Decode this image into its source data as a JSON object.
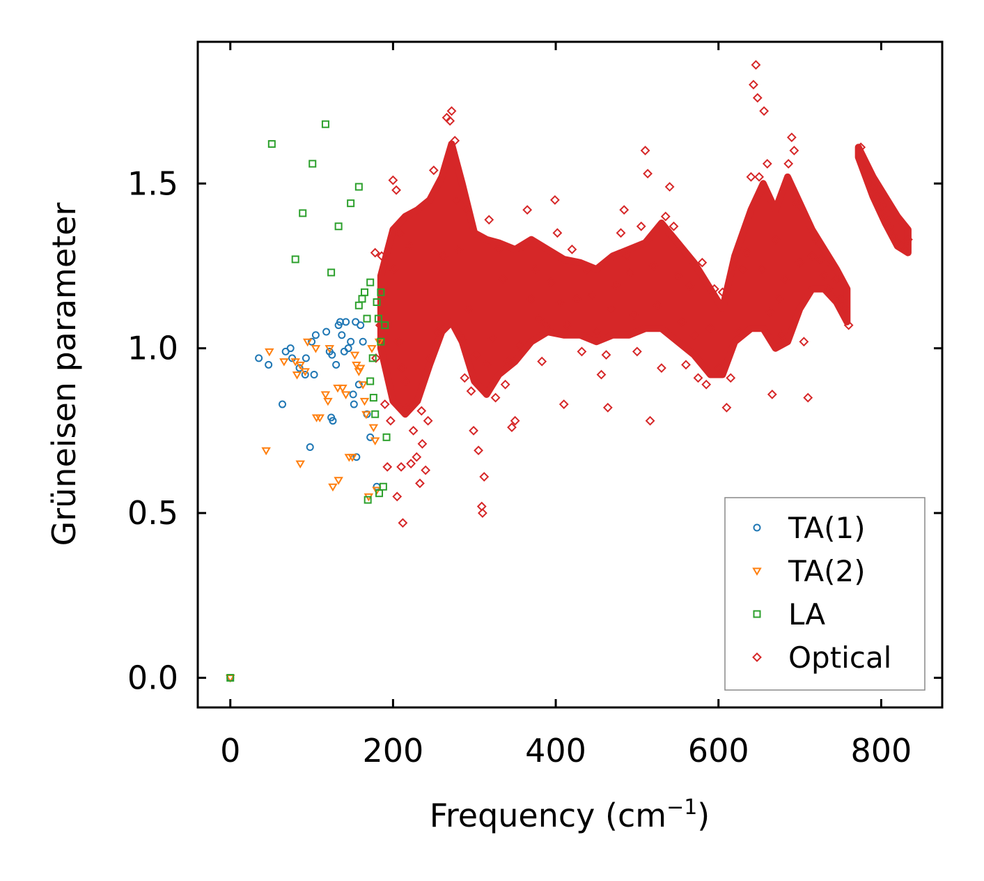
{
  "chart_data": {
    "type": "scatter",
    "title": "",
    "xlabel": "Frequency (cm",
    "xlabel_sup": "−1",
    "xlabel_end": ")",
    "ylabel": "Grüneisen parameter",
    "xlim": [
      -40,
      875
    ],
    "ylim": [
      -0.09,
      1.93
    ],
    "xticks": [
      0,
      200,
      400,
      600,
      800
    ],
    "xtick_labels": [
      "0",
      "200",
      "400",
      "600",
      "800"
    ],
    "yticks": [
      0.0,
      0.5,
      1.0,
      1.5
    ],
    "ytick_labels": [
      "0.0",
      "0.5",
      "1.0",
      "1.5"
    ],
    "legend_position": "lower-right",
    "grid": false,
    "series": [
      {
        "name": "TA(1)",
        "marker": "circle",
        "color": "#1f77b4",
        "points": [
          [
            0,
            0.0
          ],
          [
            35,
            0.97
          ],
          [
            47,
            0.95
          ],
          [
            64,
            0.83
          ],
          [
            68,
            0.99
          ],
          [
            74,
            1.0
          ],
          [
            76,
            0.97
          ],
          [
            85,
            0.94
          ],
          [
            92,
            0.92
          ],
          [
            93,
            0.97
          ],
          [
            100,
            1.02
          ],
          [
            103,
            0.92
          ],
          [
            105,
            1.04
          ],
          [
            98,
            0.7
          ],
          [
            118,
            1.05
          ],
          [
            122,
            0.99
          ],
          [
            125,
            0.98
          ],
          [
            124,
            0.79
          ],
          [
            126,
            0.78
          ],
          [
            130,
            0.95
          ],
          [
            133,
            1.07
          ],
          [
            135,
            1.08
          ],
          [
            137,
            1.04
          ],
          [
            140,
            0.99
          ],
          [
            142,
            1.08
          ],
          [
            145,
            1.0
          ],
          [
            148,
            1.02
          ],
          [
            151,
            0.86
          ],
          [
            152,
            0.83
          ],
          [
            154,
            1.08
          ],
          [
            155,
            0.67
          ],
          [
            158,
            0.89
          ],
          [
            160,
            1.07
          ],
          [
            163,
            1.02
          ],
          [
            168,
            0.8
          ],
          [
            172,
            0.73
          ],
          [
            180,
            0.58
          ]
        ]
      },
      {
        "name": "TA(2)",
        "marker": "triangle",
        "color": "#ff7f0e",
        "points": [
          [
            0,
            0.0
          ],
          [
            44,
            0.69
          ],
          [
            48,
            0.99
          ],
          [
            66,
            0.96
          ],
          [
            80,
            0.96
          ],
          [
            82,
            0.92
          ],
          [
            86,
            0.95
          ],
          [
            86,
            0.65
          ],
          [
            92,
            0.93
          ],
          [
            95,
            1.02
          ],
          [
            105,
            1.0
          ],
          [
            106,
            0.79
          ],
          [
            110,
            0.79
          ],
          [
            117,
            0.86
          ],
          [
            120,
            0.84
          ],
          [
            122,
            1.0
          ],
          [
            126,
            0.58
          ],
          [
            132,
            0.88
          ],
          [
            133,
            0.6
          ],
          [
            138,
            0.88
          ],
          [
            142,
            0.86
          ],
          [
            146,
            0.67
          ],
          [
            150,
            0.67
          ],
          [
            153,
            0.98
          ],
          [
            155,
            0.95
          ],
          [
            158,
            0.93
          ],
          [
            160,
            0.94
          ],
          [
            163,
            0.89
          ],
          [
            165,
            0.84
          ],
          [
            167,
            0.8
          ],
          [
            170,
            0.55
          ],
          [
            174,
            1.0
          ],
          [
            176,
            0.76
          ],
          [
            178,
            0.72
          ],
          [
            180,
            0.57
          ],
          [
            183,
            1.02
          ]
        ]
      },
      {
        "name": "LA",
        "marker": "square",
        "color": "#2ca02c",
        "points": [
          [
            0,
            0.0
          ],
          [
            51,
            1.62
          ],
          [
            80,
            1.27
          ],
          [
            89,
            1.41
          ],
          [
            101,
            1.56
          ],
          [
            117,
            1.68
          ],
          [
            124,
            1.23
          ],
          [
            133,
            1.37
          ],
          [
            148,
            1.44
          ],
          [
            158,
            1.49
          ],
          [
            158,
            1.13
          ],
          [
            162,
            1.15
          ],
          [
            165,
            1.17
          ],
          [
            168,
            1.09
          ],
          [
            169,
            0.54
          ],
          [
            172,
            1.2
          ],
          [
            172,
            0.9
          ],
          [
            175,
            0.97
          ],
          [
            176,
            0.85
          ],
          [
            178,
            0.8
          ],
          [
            180,
            1.14
          ],
          [
            182,
            1.09
          ],
          [
            183,
            0.56
          ],
          [
            185,
            1.17
          ],
          [
            185,
            1.02
          ],
          [
            188,
            0.58
          ],
          [
            190,
            1.07
          ],
          [
            192,
            0.73
          ]
        ]
      },
      {
        "name": "Optical",
        "marker": "diamond",
        "color": "#d62728",
        "points": [
          [
            178,
            1.29
          ],
          [
            179,
            0.97
          ],
          [
            184,
            1.07
          ],
          [
            186,
            1.28
          ],
          [
            190,
            0.83
          ],
          [
            193,
            0.64
          ],
          [
            197,
            0.78
          ],
          [
            200,
            1.51
          ],
          [
            201,
            1.24
          ],
          [
            204,
            1.48
          ],
          [
            205,
            0.55
          ],
          [
            207,
            1.02
          ],
          [
            208,
            1.35
          ],
          [
            210,
            0.64
          ],
          [
            211,
            0.94
          ],
          [
            212,
            0.47
          ],
          [
            215,
            0.9
          ],
          [
            218,
            0.82
          ],
          [
            220,
            1.31
          ],
          [
            222,
            0.65
          ],
          [
            225,
            0.75
          ],
          [
            229,
            0.67
          ],
          [
            233,
            0.59
          ],
          [
            235,
            0.81
          ],
          [
            236,
            0.71
          ],
          [
            240,
            0.63
          ],
          [
            243,
            0.78
          ],
          [
            246,
            0.97
          ],
          [
            250,
            1.54
          ],
          [
            255,
            1.05
          ],
          [
            262,
            1.28
          ],
          [
            266,
            1.7
          ],
          [
            270,
            1.69
          ],
          [
            272,
            1.72
          ],
          [
            276,
            1.63
          ],
          [
            278,
            1.45
          ],
          [
            281,
            1.3
          ],
          [
            285,
            1.03
          ],
          [
            288,
            0.91
          ],
          [
            290,
            1.42
          ],
          [
            293,
            1.12
          ],
          [
            296,
            0.87
          ],
          [
            299,
            0.75
          ],
          [
            302,
            0.98
          ],
          [
            305,
            0.69
          ],
          [
            309,
            0.52
          ],
          [
            310,
            0.5
          ],
          [
            312,
            0.61
          ],
          [
            315,
            0.95
          ],
          [
            318,
            1.39
          ],
          [
            322,
            1.03
          ],
          [
            326,
            0.85
          ],
          [
            330,
            1.3
          ],
          [
            335,
            1.21
          ],
          [
            338,
            0.89
          ],
          [
            342,
            0.96
          ],
          [
            346,
            0.76
          ],
          [
            350,
            0.78
          ],
          [
            355,
            1.01
          ],
          [
            360,
            1.31
          ],
          [
            365,
            1.42
          ],
          [
            370,
            1.15
          ],
          [
            375,
            1.24
          ],
          [
            380,
            1.09
          ],
          [
            383,
            0.96
          ],
          [
            388,
            1.07
          ],
          [
            394,
            1.2
          ],
          [
            399,
            1.45
          ],
          [
            402,
            1.35
          ],
          [
            405,
            1.14
          ],
          [
            410,
            0.83
          ],
          [
            414,
            1.07
          ],
          [
            420,
            1.3
          ],
          [
            426,
            1.15
          ],
          [
            432,
            0.99
          ],
          [
            438,
            1.24
          ],
          [
            444,
            1.16
          ],
          [
            450,
            1.05
          ],
          [
            456,
            0.92
          ],
          [
            462,
            0.98
          ],
          [
            464,
            0.82
          ],
          [
            468,
            1.12
          ],
          [
            474,
            1.19
          ],
          [
            480,
            1.35
          ],
          [
            484,
            1.42
          ],
          [
            488,
            1.28
          ],
          [
            492,
            1.23
          ],
          [
            496,
            1.1
          ],
          [
            500,
            0.99
          ],
          [
            505,
            1.37
          ],
          [
            510,
            1.6
          ],
          [
            513,
            1.53
          ],
          [
            516,
            0.78
          ],
          [
            520,
            1.25
          ],
          [
            525,
            1.13
          ],
          [
            530,
            0.94
          ],
          [
            535,
            1.4
          ],
          [
            540,
            1.49
          ],
          [
            545,
            1.37
          ],
          [
            550,
            1.22
          ],
          [
            555,
            1.08
          ],
          [
            560,
            0.95
          ],
          [
            565,
            1.19
          ],
          [
            570,
            1.04
          ],
          [
            575,
            0.91
          ],
          [
            580,
            1.26
          ],
          [
            585,
            0.89
          ],
          [
            590,
            1.06
          ],
          [
            595,
            1.18
          ],
          [
            600,
            0.94
          ],
          [
            605,
            1.17
          ],
          [
            610,
            0.82
          ],
          [
            615,
            0.91
          ],
          [
            620,
            1.25
          ],
          [
            625,
            1.05
          ],
          [
            630,
            1.24
          ],
          [
            635,
            1.29
          ],
          [
            640,
            1.52
          ],
          [
            643,
            1.8
          ],
          [
            646,
            1.86
          ],
          [
            648,
            1.76
          ],
          [
            650,
            1.52
          ],
          [
            653,
            1.24
          ],
          [
            656,
            1.72
          ],
          [
            660,
            1.56
          ],
          [
            663,
            1.11
          ],
          [
            666,
            0.86
          ],
          [
            670,
            1.33
          ],
          [
            674,
            1.15
          ],
          [
            678,
            1.04
          ],
          [
            682,
            1.21
          ],
          [
            686,
            1.56
          ],
          [
            690,
            1.64
          ],
          [
            693,
            1.6
          ],
          [
            696,
            1.44
          ],
          [
            700,
            1.26
          ],
          [
            705,
            1.02
          ],
          [
            710,
            0.85
          ],
          [
            715,
            1.28
          ],
          [
            720,
            1.33
          ],
          [
            725,
            1.27
          ],
          [
            730,
            1.22
          ],
          [
            735,
            1.18
          ],
          [
            740,
            1.25
          ],
          [
            745,
            1.21
          ],
          [
            750,
            1.15
          ],
          [
            755,
            1.12
          ],
          [
            760,
            1.07
          ],
          [
            775,
            1.61
          ],
          [
            780,
            1.56
          ],
          [
            785,
            1.53
          ],
          [
            790,
            1.49
          ],
          [
            795,
            1.46
          ],
          [
            800,
            1.43
          ],
          [
            805,
            1.4
          ],
          [
            810,
            1.37
          ],
          [
            815,
            1.34
          ],
          [
            820,
            1.32
          ],
          [
            825,
            1.31
          ],
          [
            830,
            1.3
          ],
          [
            833,
            1.33
          ]
        ]
      }
    ]
  }
}
